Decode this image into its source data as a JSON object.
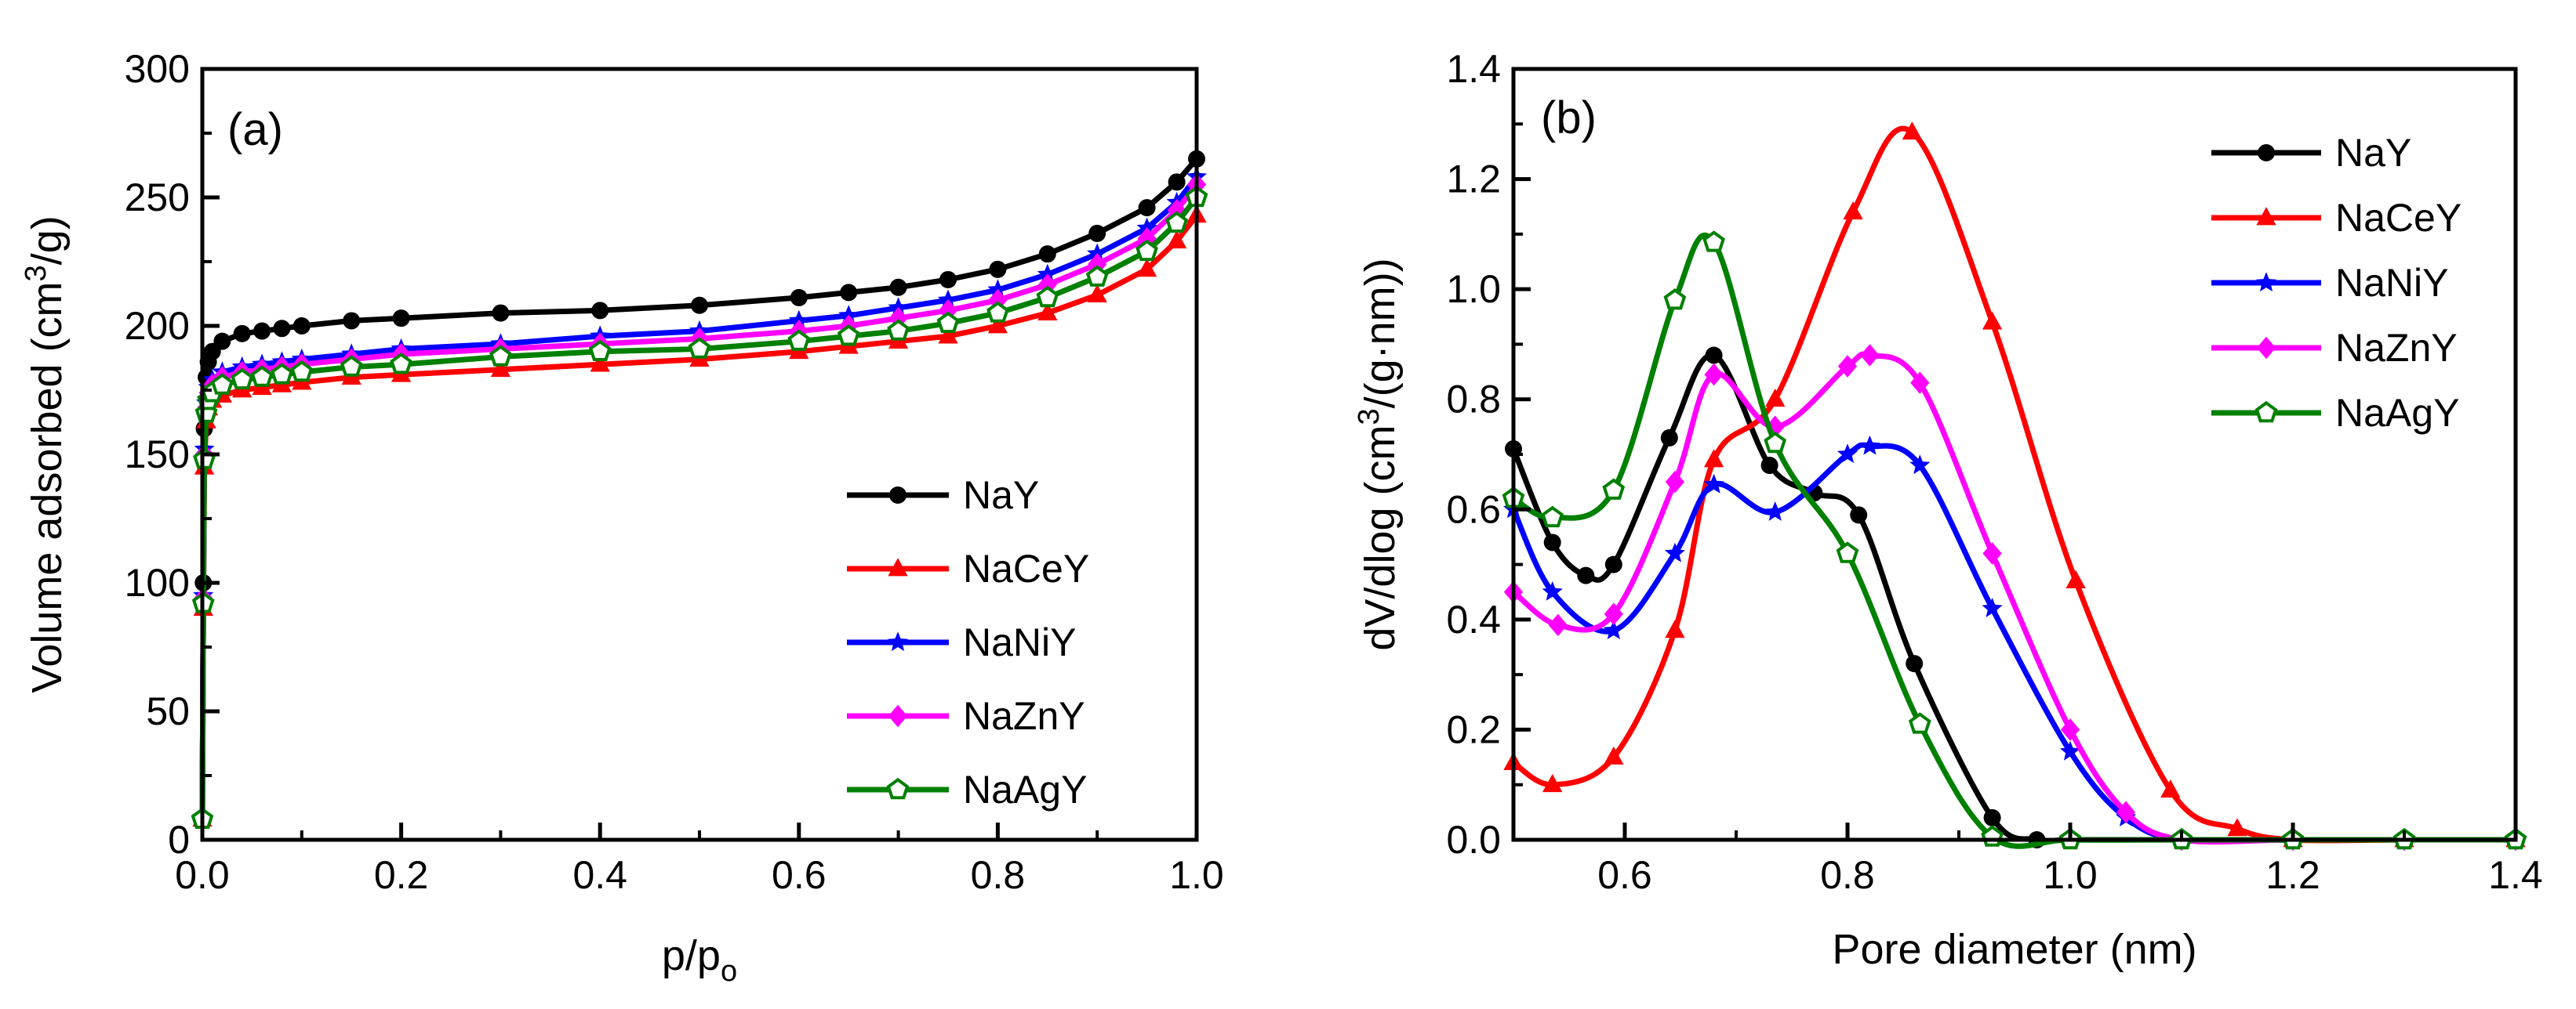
{
  "chart_data": [
    {
      "panel": "(a)",
      "type": "line",
      "xlabel_main": "p/p",
      "xlabel_sub": "o",
      "ylabel": "Volume adsorbed (cm",
      "ylabel_sup": "3",
      "ylabel_end": "/g)",
      "xlim": [
        0.0,
        1.0
      ],
      "ylim": [
        0,
        300
      ],
      "xticks": [
        "0.0",
        "0.2",
        "0.4",
        "0.6",
        "0.8",
        "1.0"
      ],
      "yticks": [
        "0",
        "50",
        "100",
        "150",
        "200",
        "250",
        "300"
      ],
      "legend_position": "bottom-right",
      "series": [
        {
          "name": "NaY",
          "color": "#000000",
          "marker": "circle",
          "x": [
            0.0,
            0.001,
            0.002,
            0.004,
            0.006,
            0.01,
            0.02,
            0.04,
            0.06,
            0.08,
            0.1,
            0.15,
            0.2,
            0.3,
            0.4,
            0.5,
            0.6,
            0.65,
            0.7,
            0.75,
            0.8,
            0.85,
            0.9,
            0.95,
            0.98,
            1.0
          ],
          "y": [
            8,
            100,
            160,
            180,
            186,
            190,
            194,
            197,
            198,
            199,
            200,
            202,
            203,
            205,
            206,
            208,
            211,
            213,
            215,
            218,
            222,
            228,
            236,
            246,
            256,
            265
          ]
        },
        {
          "name": "NaCeY",
          "color": "#ff0000",
          "marker": "triangle",
          "x": [
            0.0,
            0.001,
            0.002,
            0.004,
            0.006,
            0.01,
            0.02,
            0.04,
            0.06,
            0.08,
            0.1,
            0.15,
            0.2,
            0.3,
            0.4,
            0.5,
            0.6,
            0.65,
            0.7,
            0.75,
            0.8,
            0.85,
            0.9,
            0.95,
            0.98,
            1.0
          ],
          "y": [
            8,
            90,
            145,
            163,
            168,
            171,
            173,
            175,
            176,
            177,
            178,
            180,
            181,
            183,
            185,
            187,
            190,
            192,
            194,
            196,
            200,
            205,
            212,
            222,
            233,
            243
          ]
        },
        {
          "name": "NaNiY",
          "color": "#0000ff",
          "marker": "star",
          "x": [
            0.0,
            0.001,
            0.002,
            0.004,
            0.006,
            0.01,
            0.02,
            0.04,
            0.06,
            0.08,
            0.1,
            0.15,
            0.2,
            0.3,
            0.4,
            0.5,
            0.6,
            0.65,
            0.7,
            0.75,
            0.8,
            0.85,
            0.9,
            0.95,
            0.98,
            1.0
          ],
          "y": [
            8,
            95,
            152,
            170,
            176,
            179,
            182,
            184,
            185,
            186,
            187,
            189,
            191,
            193,
            196,
            198,
            202,
            204,
            207,
            210,
            214,
            220,
            228,
            238,
            248,
            258
          ]
        },
        {
          "name": "NaZnY",
          "color": "#ff00ff",
          "marker": "diamond",
          "x": [
            0.0,
            0.001,
            0.002,
            0.004,
            0.006,
            0.01,
            0.02,
            0.04,
            0.06,
            0.08,
            0.1,
            0.15,
            0.2,
            0.3,
            0.4,
            0.5,
            0.6,
            0.65,
            0.7,
            0.75,
            0.8,
            0.85,
            0.9,
            0.95,
            0.98,
            1.0
          ],
          "y": [
            8,
            94,
            150,
            168,
            174,
            177,
            180,
            182,
            183,
            184,
            185,
            187,
            189,
            191,
            193,
            195,
            198,
            200,
            203,
            206,
            210,
            216,
            224,
            234,
            245,
            255
          ]
        },
        {
          "name": "NaAgY",
          "color": "#008000",
          "marker": "pentagon",
          "x": [
            0.0,
            0.001,
            0.002,
            0.004,
            0.006,
            0.01,
            0.02,
            0.04,
            0.06,
            0.08,
            0.1,
            0.15,
            0.2,
            0.3,
            0.4,
            0.5,
            0.6,
            0.65,
            0.7,
            0.75,
            0.8,
            0.85,
            0.9,
            0.95,
            0.98,
            1.0
          ],
          "y": [
            8,
            92,
            148,
            166,
            171,
            174,
            177,
            179,
            180,
            181,
            182,
            184,
            185,
            188,
            190,
            191,
            194,
            196,
            198,
            201,
            205,
            211,
            219,
            229,
            240,
            250
          ]
        }
      ]
    },
    {
      "panel": "(b)",
      "type": "line",
      "xlabel": "Pore diameter (nm)",
      "ylabel": "dV/dlog (cm",
      "ylabel_sup": "3",
      "ylabel_end": "/(g·nm))",
      "xlim": [
        0.5,
        1.4
      ],
      "ylim": [
        0.0,
        1.4
      ],
      "xticks": [
        "0.6",
        "0.8",
        "1.0",
        "1.2",
        "1.4"
      ],
      "yticks": [
        "0.0",
        "0.2",
        "0.4",
        "0.6",
        "0.8",
        "1.0",
        "1.2",
        "1.4"
      ],
      "legend_position": "top-right",
      "series": [
        {
          "name": "NaY",
          "color": "#000000",
          "marker": "circle",
          "x": [
            0.5,
            0.535,
            0.565,
            0.59,
            0.64,
            0.68,
            0.73,
            0.77,
            0.81,
            0.86,
            0.93,
            0.97,
            1.0,
            1.1,
            1.2,
            1.3,
            1.4
          ],
          "y": [
            0.71,
            0.54,
            0.48,
            0.5,
            0.73,
            0.88,
            0.68,
            0.63,
            0.59,
            0.32,
            0.04,
            0.0,
            0.0,
            0.0,
            0.0,
            0.0,
            0.0
          ]
        },
        {
          "name": "NaCeY",
          "color": "#ff0000",
          "marker": "triangle",
          "x": [
            0.5,
            0.535,
            0.59,
            0.645,
            0.68,
            0.735,
            0.805,
            0.858,
            0.93,
            1.005,
            1.09,
            1.15,
            1.2,
            1.3,
            1.4
          ],
          "y": [
            0.14,
            0.1,
            0.15,
            0.38,
            0.69,
            0.8,
            1.14,
            1.285,
            0.94,
            0.47,
            0.09,
            0.02,
            0.0,
            0.0,
            0.0
          ]
        },
        {
          "name": "NaNiY",
          "color": "#0000ff",
          "marker": "star",
          "x": [
            0.5,
            0.535,
            0.59,
            0.645,
            0.68,
            0.735,
            0.8,
            0.82,
            0.865,
            0.93,
            1.0,
            1.05,
            1.1,
            1.2,
            1.3,
            1.4
          ],
          "y": [
            0.6,
            0.45,
            0.38,
            0.52,
            0.645,
            0.595,
            0.7,
            0.715,
            0.68,
            0.42,
            0.16,
            0.04,
            0.0,
            0.0,
            0.0,
            0.0
          ]
        },
        {
          "name": "NaZnY",
          "color": "#ff00ff",
          "marker": "diamond",
          "x": [
            0.5,
            0.54,
            0.59,
            0.645,
            0.68,
            0.735,
            0.8,
            0.82,
            0.865,
            0.93,
            1.0,
            1.05,
            1.1,
            1.2,
            1.3,
            1.4
          ],
          "y": [
            0.45,
            0.39,
            0.41,
            0.65,
            0.845,
            0.75,
            0.86,
            0.88,
            0.83,
            0.52,
            0.2,
            0.05,
            0.0,
            0.0,
            0.0,
            0.0
          ]
        },
        {
          "name": "NaAgY",
          "color": "#008000",
          "marker": "pentagon",
          "x": [
            0.5,
            0.535,
            0.59,
            0.645,
            0.68,
            0.735,
            0.8,
            0.865,
            0.93,
            1.0,
            1.1,
            1.2,
            1.3,
            1.4
          ],
          "y": [
            0.62,
            0.585,
            0.635,
            0.98,
            1.085,
            0.72,
            0.52,
            0.21,
            0.005,
            0.0,
            0.0,
            0.0,
            0.0,
            0.0
          ]
        }
      ]
    }
  ]
}
